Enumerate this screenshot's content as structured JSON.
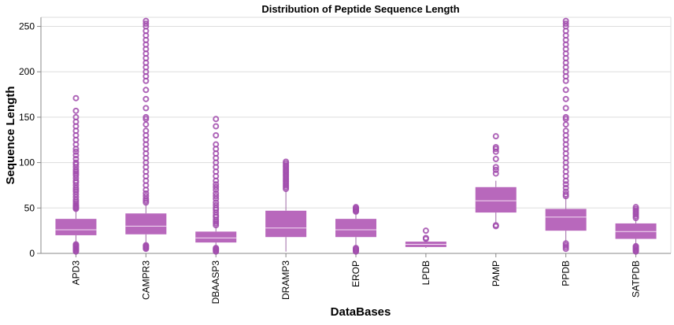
{
  "chart_data": {
    "type": "box",
    "title": "Distribution of Peptide Sequence Length",
    "xlabel": "DataBases",
    "ylabel": "Sequence Length",
    "ylim": [
      0,
      260
    ],
    "yticks": [
      0,
      50,
      100,
      150,
      200,
      250
    ],
    "grid": true,
    "legend": "none",
    "colors": {
      "box": "#b868bc",
      "outlier": "#a04aac",
      "whisker": "#9e6aa6",
      "median": "#f4def4"
    },
    "categories": [
      "APD3",
      "CAMPR3",
      "DBAASP3",
      "DRAMP3",
      "EROP",
      "LPDB",
      "PAMP",
      "PPDB",
      "SATPDB"
    ],
    "series": [
      {
        "category": "APD3",
        "whisker_low": 2,
        "q1": 20,
        "median": 26,
        "q3": 38,
        "whisker_high": 48,
        "outliers": [
          2,
          3,
          4,
          5,
          6,
          7,
          8,
          9,
          10,
          49,
          50,
          51,
          52,
          53,
          55,
          57,
          59,
          62,
          65,
          68,
          70,
          72,
          75,
          78,
          80,
          83,
          86,
          88,
          90,
          92,
          95,
          98,
          100,
          104,
          108,
          112,
          115,
          120,
          125,
          130,
          135,
          140,
          145,
          150,
          157,
          171
        ]
      },
      {
        "category": "CAMPR3",
        "whisker_low": 10,
        "q1": 21,
        "median": 30,
        "q3": 44,
        "whisker_high": 55,
        "outliers": [
          5,
          6,
          7,
          8,
          9,
          56,
          58,
          60,
          63,
          66,
          70,
          75,
          80,
          85,
          90,
          95,
          100,
          105,
          110,
          115,
          120,
          125,
          130,
          135,
          142,
          148,
          150,
          160,
          170,
          180,
          190,
          195,
          200,
          205,
          210,
          215,
          220,
          225,
          230,
          235,
          240,
          245,
          250,
          253,
          256
        ]
      },
      {
        "category": "DBAASP3",
        "whisker_low": 2,
        "q1": 12,
        "median": 17,
        "q3": 24,
        "whisker_high": 30,
        "outliers": [
          2,
          3,
          4,
          5,
          6,
          31,
          33,
          35,
          37,
          40,
          42,
          45,
          48,
          50,
          53,
          56,
          60,
          63,
          66,
          70,
          73,
          76,
          80,
          85,
          90,
          95,
          100,
          105,
          110,
          115,
          120,
          130,
          140,
          148
        ]
      },
      {
        "category": "DRAMP3",
        "whisker_low": 2,
        "q1": 18,
        "median": 28,
        "q3": 47,
        "whisker_high": 70,
        "outliers": [
          71,
          73,
          75,
          77,
          79,
          81,
          83,
          85,
          87,
          89,
          91,
          93,
          95,
          97,
          99,
          101
        ]
      },
      {
        "category": "EROP",
        "whisker_low": 7,
        "q1": 18,
        "median": 26,
        "q3": 38,
        "whisker_high": 45,
        "outliers": [
          2,
          3,
          4,
          5,
          6,
          46,
          47,
          48,
          49,
          50,
          51
        ]
      },
      {
        "category": "LPDB",
        "whisker_low": 6,
        "q1": 7,
        "median": 10,
        "q3": 13,
        "whisker_high": 15,
        "outliers": [
          16,
          17,
          25
        ]
      },
      {
        "category": "PAMP",
        "whisker_low": 33,
        "q1": 45,
        "median": 58,
        "q3": 73,
        "whisker_high": 80,
        "outliers": [
          30,
          31,
          88,
          92,
          95,
          104,
          112,
          115,
          117,
          129
        ]
      },
      {
        "category": "PPDB",
        "whisker_low": 12,
        "q1": 25,
        "median": 40,
        "q3": 49,
        "whisker_high": 62,
        "outliers": [
          5,
          7,
          9,
          11,
          63,
          65,
          68,
          72,
          76,
          80,
          85,
          90,
          95,
          100,
          105,
          110,
          115,
          120,
          125,
          130,
          135,
          142,
          148,
          150,
          160,
          170,
          180,
          190,
          195,
          200,
          205,
          210,
          215,
          220,
          225,
          230,
          235,
          240,
          245,
          250,
          253,
          256
        ]
      },
      {
        "category": "SATPDB",
        "whisker_low": 10,
        "q1": 16,
        "median": 24,
        "q3": 33,
        "whisker_high": 38,
        "outliers": [
          2,
          3,
          4,
          5,
          6,
          7,
          8,
          39,
          41,
          43,
          45,
          47,
          49,
          51
        ]
      }
    ]
  }
}
